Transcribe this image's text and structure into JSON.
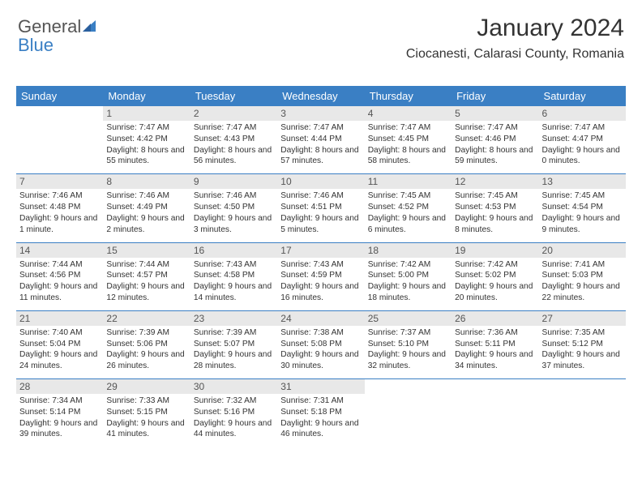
{
  "logo": {
    "text1": "General",
    "text2": "Blue"
  },
  "header": {
    "month_title": "January 2024",
    "location": "Ciocanesti, Calarasi County, Romania"
  },
  "colors": {
    "header_bg": "#3a7fc4",
    "header_text": "#ffffff",
    "daynum_bg": "#e8e8e8",
    "body_text": "#333333",
    "row_divider": "#3a7fc4"
  },
  "day_headers": [
    "Sunday",
    "Monday",
    "Tuesday",
    "Wednesday",
    "Thursday",
    "Friday",
    "Saturday"
  ],
  "weeks": [
    [
      {
        "n": "",
        "t": ""
      },
      {
        "n": "1",
        "t": "Sunrise: 7:47 AM\nSunset: 4:42 PM\nDaylight: 8 hours and 55 minutes."
      },
      {
        "n": "2",
        "t": "Sunrise: 7:47 AM\nSunset: 4:43 PM\nDaylight: 8 hours and 56 minutes."
      },
      {
        "n": "3",
        "t": "Sunrise: 7:47 AM\nSunset: 4:44 PM\nDaylight: 8 hours and 57 minutes."
      },
      {
        "n": "4",
        "t": "Sunrise: 7:47 AM\nSunset: 4:45 PM\nDaylight: 8 hours and 58 minutes."
      },
      {
        "n": "5",
        "t": "Sunrise: 7:47 AM\nSunset: 4:46 PM\nDaylight: 8 hours and 59 minutes."
      },
      {
        "n": "6",
        "t": "Sunrise: 7:47 AM\nSunset: 4:47 PM\nDaylight: 9 hours and 0 minutes."
      }
    ],
    [
      {
        "n": "7",
        "t": "Sunrise: 7:46 AM\nSunset: 4:48 PM\nDaylight: 9 hours and 1 minute."
      },
      {
        "n": "8",
        "t": "Sunrise: 7:46 AM\nSunset: 4:49 PM\nDaylight: 9 hours and 2 minutes."
      },
      {
        "n": "9",
        "t": "Sunrise: 7:46 AM\nSunset: 4:50 PM\nDaylight: 9 hours and 3 minutes."
      },
      {
        "n": "10",
        "t": "Sunrise: 7:46 AM\nSunset: 4:51 PM\nDaylight: 9 hours and 5 minutes."
      },
      {
        "n": "11",
        "t": "Sunrise: 7:45 AM\nSunset: 4:52 PM\nDaylight: 9 hours and 6 minutes."
      },
      {
        "n": "12",
        "t": "Sunrise: 7:45 AM\nSunset: 4:53 PM\nDaylight: 9 hours and 8 minutes."
      },
      {
        "n": "13",
        "t": "Sunrise: 7:45 AM\nSunset: 4:54 PM\nDaylight: 9 hours and 9 minutes."
      }
    ],
    [
      {
        "n": "14",
        "t": "Sunrise: 7:44 AM\nSunset: 4:56 PM\nDaylight: 9 hours and 11 minutes."
      },
      {
        "n": "15",
        "t": "Sunrise: 7:44 AM\nSunset: 4:57 PM\nDaylight: 9 hours and 12 minutes."
      },
      {
        "n": "16",
        "t": "Sunrise: 7:43 AM\nSunset: 4:58 PM\nDaylight: 9 hours and 14 minutes."
      },
      {
        "n": "17",
        "t": "Sunrise: 7:43 AM\nSunset: 4:59 PM\nDaylight: 9 hours and 16 minutes."
      },
      {
        "n": "18",
        "t": "Sunrise: 7:42 AM\nSunset: 5:00 PM\nDaylight: 9 hours and 18 minutes."
      },
      {
        "n": "19",
        "t": "Sunrise: 7:42 AM\nSunset: 5:02 PM\nDaylight: 9 hours and 20 minutes."
      },
      {
        "n": "20",
        "t": "Sunrise: 7:41 AM\nSunset: 5:03 PM\nDaylight: 9 hours and 22 minutes."
      }
    ],
    [
      {
        "n": "21",
        "t": "Sunrise: 7:40 AM\nSunset: 5:04 PM\nDaylight: 9 hours and 24 minutes."
      },
      {
        "n": "22",
        "t": "Sunrise: 7:39 AM\nSunset: 5:06 PM\nDaylight: 9 hours and 26 minutes."
      },
      {
        "n": "23",
        "t": "Sunrise: 7:39 AM\nSunset: 5:07 PM\nDaylight: 9 hours and 28 minutes."
      },
      {
        "n": "24",
        "t": "Sunrise: 7:38 AM\nSunset: 5:08 PM\nDaylight: 9 hours and 30 minutes."
      },
      {
        "n": "25",
        "t": "Sunrise: 7:37 AM\nSunset: 5:10 PM\nDaylight: 9 hours and 32 minutes."
      },
      {
        "n": "26",
        "t": "Sunrise: 7:36 AM\nSunset: 5:11 PM\nDaylight: 9 hours and 34 minutes."
      },
      {
        "n": "27",
        "t": "Sunrise: 7:35 AM\nSunset: 5:12 PM\nDaylight: 9 hours and 37 minutes."
      }
    ],
    [
      {
        "n": "28",
        "t": "Sunrise: 7:34 AM\nSunset: 5:14 PM\nDaylight: 9 hours and 39 minutes."
      },
      {
        "n": "29",
        "t": "Sunrise: 7:33 AM\nSunset: 5:15 PM\nDaylight: 9 hours and 41 minutes."
      },
      {
        "n": "30",
        "t": "Sunrise: 7:32 AM\nSunset: 5:16 PM\nDaylight: 9 hours and 44 minutes."
      },
      {
        "n": "31",
        "t": "Sunrise: 7:31 AM\nSunset: 5:18 PM\nDaylight: 9 hours and 46 minutes."
      },
      {
        "n": "",
        "t": ""
      },
      {
        "n": "",
        "t": ""
      },
      {
        "n": "",
        "t": ""
      }
    ]
  ]
}
